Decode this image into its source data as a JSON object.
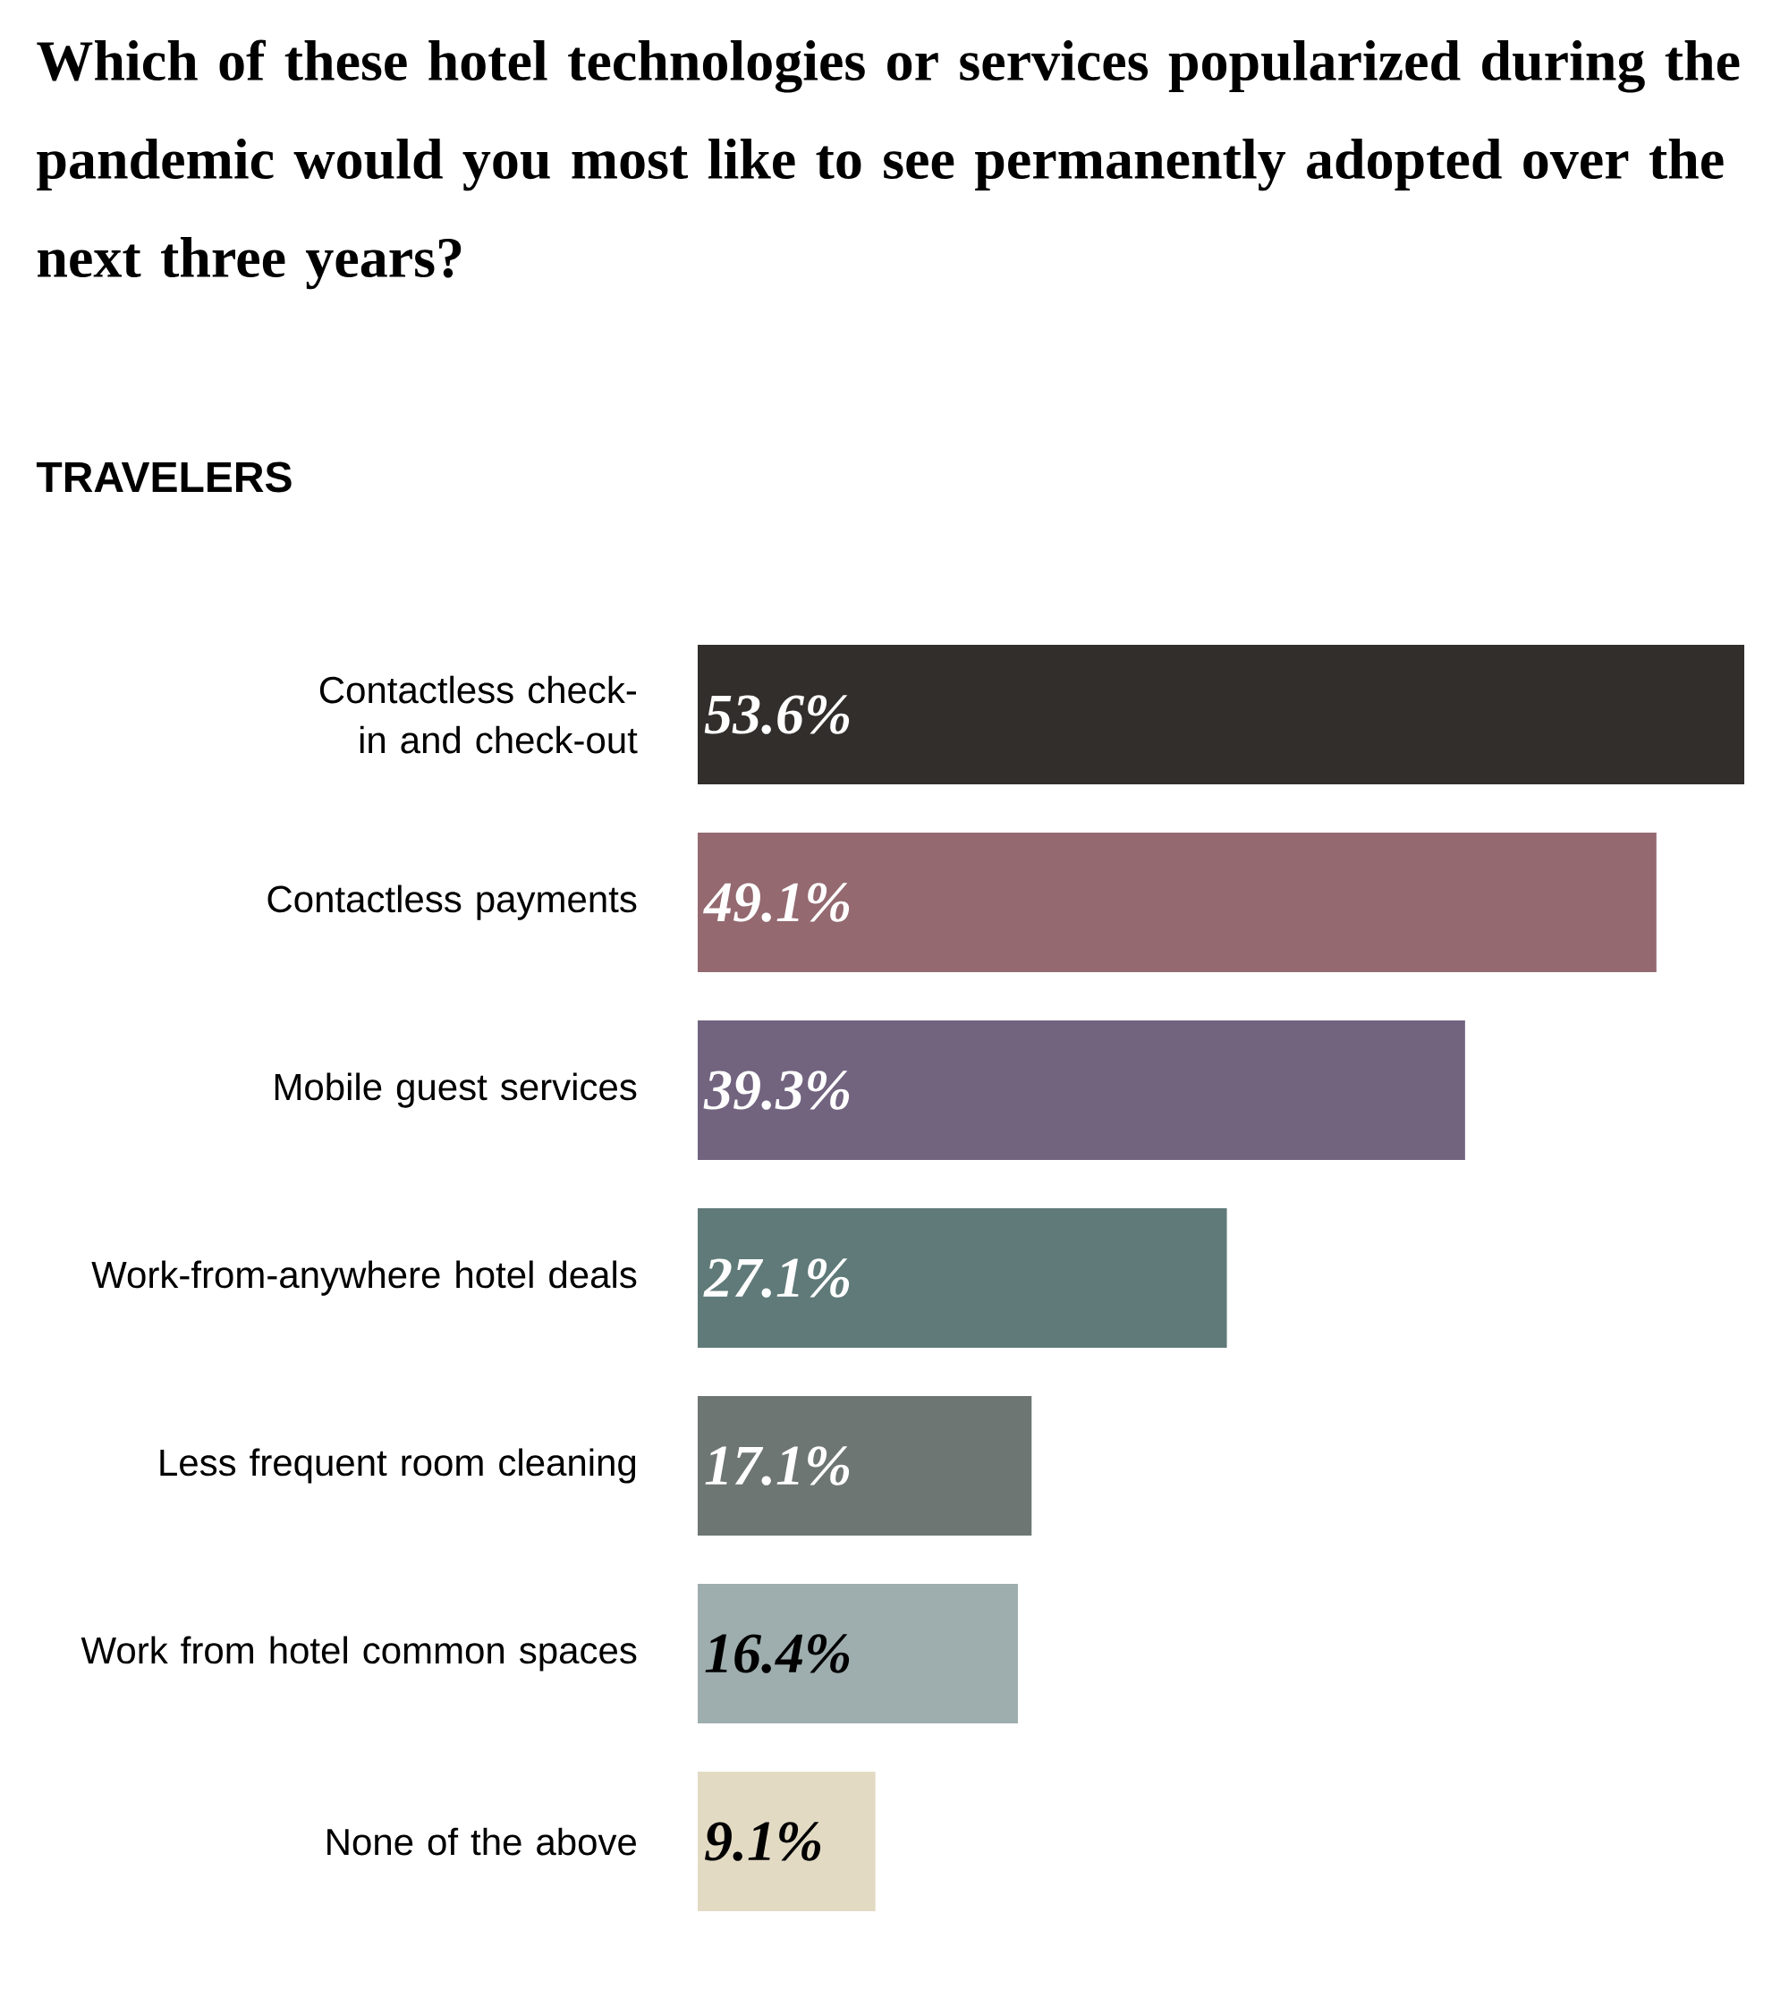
{
  "chart_data": {
    "type": "bar",
    "orientation": "horizontal",
    "title": "Which of these hotel technologies or services popularized during the pandemic would you most like to see permanently adopted over the next three years?",
    "subtitle": "TRAVELERS",
    "categories": [
      "Contactless check-in and check-out",
      "Contactless payments",
      "Mobile guest services",
      "Work-from-anywhere hotel deals",
      "Less frequent room cleaning",
      "Work from hotel common spaces",
      "None of the above"
    ],
    "values": [
      53.6,
      49.1,
      39.3,
      27.1,
      17.1,
      16.4,
      9.1
    ],
    "colors": [
      "#322e2b",
      "#946970",
      "#72637f",
      "#5f7a78",
      "#6e7673",
      "#9eadad",
      "#e3dac4"
    ],
    "value_labels": [
      "53.6%",
      "49.1%",
      "39.3%",
      "27.1%",
      "17.1%",
      "16.4%",
      "9.1%"
    ]
  }
}
